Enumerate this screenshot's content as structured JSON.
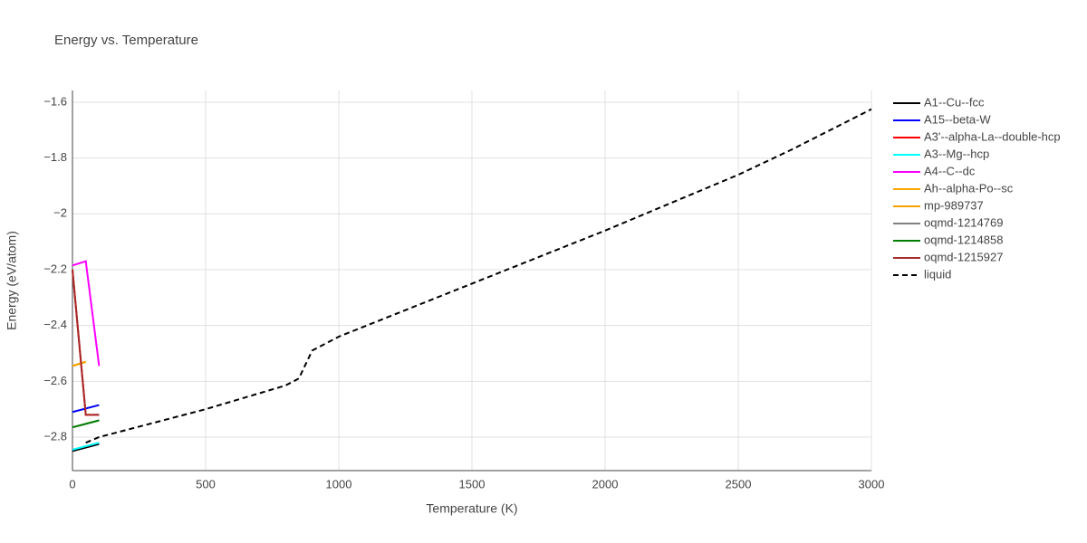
{
  "chart_data": {
    "type": "line",
    "title": "Energy vs. Temperature",
    "x_label": "Temperature (K)",
    "y_label": "Energy (eV/atom)",
    "xlim": [
      0,
      3000
    ],
    "xticks": [
      0,
      500,
      1000,
      1500,
      2000,
      2500,
      3000
    ],
    "ylim": [
      -2.92,
      -1.558
    ],
    "yticks": [
      {
        "value": -2.8,
        "label": "−2.8"
      },
      {
        "value": -2.6,
        "label": "−2.6"
      },
      {
        "value": -2.4,
        "label": "−2.4"
      },
      {
        "value": -2.2,
        "label": "−2.2"
      },
      {
        "value": -2,
        "label": "−2"
      },
      {
        "value": -1.8,
        "label": "−1.8"
      },
      {
        "value": -1.6,
        "label": "−1.6"
      }
    ],
    "grid": true,
    "legend": "right",
    "series": [
      {
        "name": "A1--Cu--fcc",
        "color": "#000000",
        "x": [
          0,
          100
        ],
        "values": [
          -2.85,
          -2.825
        ]
      },
      {
        "name": "A15--beta-W",
        "color": "#0000ff",
        "x": [
          0,
          100
        ],
        "values": [
          -2.71,
          -2.685
        ]
      },
      {
        "name": "A3'--alpha-La--double-hcp",
        "color": "#ff0000",
        "x": [
          0,
          50,
          100
        ],
        "values": [
          -2.2,
          -2.72,
          -2.72
        ]
      },
      {
        "name": "A3--Mg--hcp",
        "color": "#00ffff",
        "x": [
          0,
          100
        ],
        "values": [
          -2.845,
          -2.82
        ]
      },
      {
        "name": "A4--C--dc",
        "color": "#ff00ff",
        "x": [
          0,
          50,
          100
        ],
        "values": [
          -2.185,
          -2.17,
          -2.545
        ]
      },
      {
        "name": "Ah--alpha-Po--sc",
        "color": "#ffa500",
        "x": [
          0,
          50
        ],
        "values": [
          -2.545,
          -2.53
        ]
      },
      {
        "name": "mp-989737",
        "color": "#f5a300",
        "x": [
          0,
          50
        ],
        "values": [
          -2.545,
          -2.53
        ]
      },
      {
        "name": "oqmd-1214769",
        "color": "#808080",
        "x": [
          0,
          100
        ],
        "values": [
          -2.765,
          -2.74
        ]
      },
      {
        "name": "oqmd-1214858",
        "color": "#008000",
        "x": [
          0,
          100
        ],
        "values": [
          -2.765,
          -2.74
        ]
      },
      {
        "name": "oqmd-1215927",
        "color": "#a52a2a",
        "x": [
          0,
          50,
          100
        ],
        "values": [
          -2.2,
          -2.72,
          -2.72
        ]
      },
      {
        "name": "liquid",
        "color": "#000000",
        "dash": true,
        "x": [
          50,
          100,
          500,
          800,
          850,
          900,
          1000,
          1500,
          2000,
          2500,
          2700,
          3000
        ],
        "values": [
          -2.82,
          -2.8,
          -2.7,
          -2.615,
          -2.59,
          -2.49,
          -2.44,
          -2.25,
          -2.06,
          -1.86,
          -1.77,
          -1.625
        ]
      }
    ]
  }
}
